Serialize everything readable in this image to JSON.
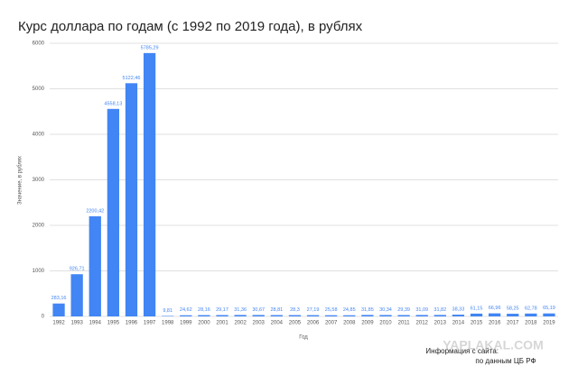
{
  "chart_data": {
    "type": "bar",
    "title": "Курс доллара по годам (с 1992 по 2019 года), в рублях",
    "x_label": "Год",
    "y_label": "Значение, в рублях",
    "categories": [
      "1992",
      "1993",
      "1994",
      "1995",
      "1996",
      "1997",
      "1998",
      "1999",
      "2000",
      "2001",
      "2002",
      "2003",
      "2004",
      "2005",
      "2006",
      "2007",
      "2008",
      "2009",
      "2010",
      "2011",
      "2012",
      "2013",
      "2014",
      "2015",
      "2016",
      "2017",
      "2018",
      "2019"
    ],
    "values": [
      283.16,
      926.71,
      2200.42,
      4558.13,
      5122.46,
      5785.29,
      9.81,
      24.62,
      28.16,
      29.17,
      31.36,
      30.67,
      28.81,
      28.3,
      27.19,
      25.58,
      24.85,
      31.85,
      30.34,
      29.39,
      31.09,
      31.82,
      38.33,
      61.15,
      66.96,
      58.25,
      62.78,
      65.19
    ],
    "value_labels": [
      "283,16",
      "926,71",
      "2200,42",
      "4558,13",
      "5122,46",
      "5785,29",
      "9,81",
      "24,62",
      "28,16",
      "29,17",
      "31,36",
      "30,67",
      "28,81",
      "28,3",
      "27,19",
      "25,58",
      "24,85",
      "31,85",
      "30,34",
      "29,39",
      "31,09",
      "31,82",
      "38,33",
      "61,15",
      "66,96",
      "58,25",
      "62,78",
      "65,19"
    ],
    "color": "#4285f4",
    "ylim": [
      0,
      6000
    ],
    "yticks": [
      0,
      1000,
      2000,
      3000,
      4000,
      5000,
      6000
    ],
    "grid": true,
    "annotations": [
      "Информация с сайта:",
      "по данным ЦБ РФ",
      "YAPLAKAL.COM"
    ]
  }
}
